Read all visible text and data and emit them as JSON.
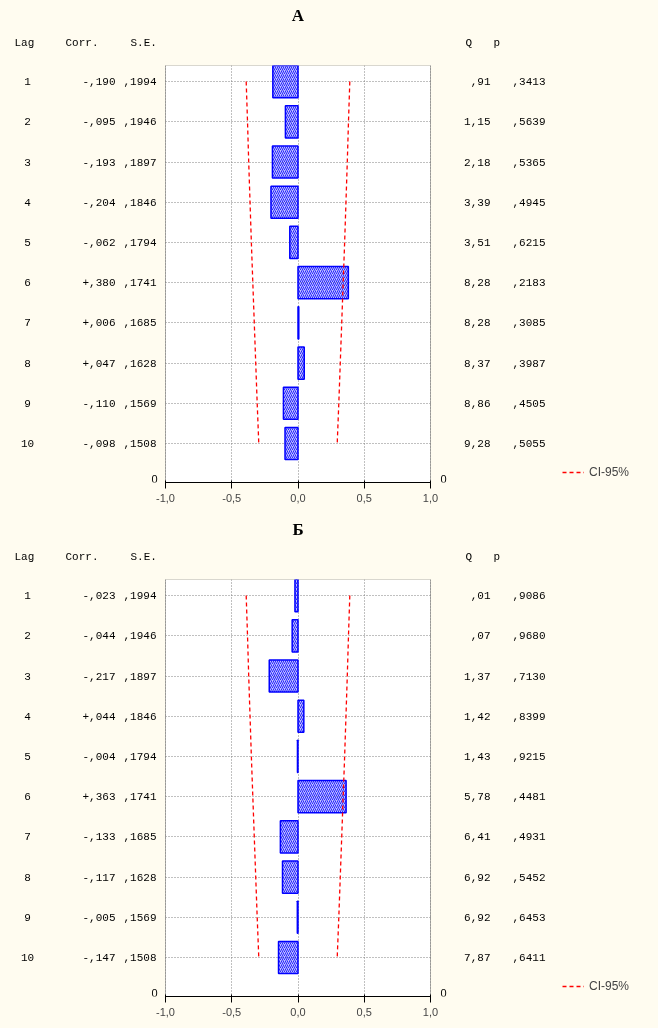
{
  "chart_data": [
    {
      "type": "bar",
      "orientation": "horizontal",
      "title": "А",
      "categories": [
        "1",
        "2",
        "3",
        "4",
        "5",
        "6",
        "7",
        "8",
        "9",
        "10"
      ],
      "series": [
        {
          "type": "bar",
          "color": "#0000ff",
          "values": [
            -0.19,
            -0.095,
            -0.193,
            -0.204,
            -0.062,
            0.38,
            0.006,
            0.047,
            -0.11,
            -0.098
          ]
        },
        {
          "type": "line",
          "name": "CI-95%",
          "color": "#ff0000",
          "line_style": "dashed",
          "values": [
            0.391,
            0.381,
            0.372,
            0.362,
            0.352,
            0.341,
            0.33,
            0.319,
            0.308,
            0.296
          ]
        },
        {
          "type": "line",
          "color": "#ff0000",
          "line_style": "dashed",
          "values": [
            -0.391,
            -0.381,
            -0.372,
            -0.362,
            -0.352,
            -0.341,
            -0.33,
            -0.319,
            -0.308,
            -0.296
          ]
        }
      ],
      "xlim": [
        -1,
        1
      ],
      "xticks": [
        {
          "value": -1,
          "label": "-1,0"
        },
        {
          "value": -0.5,
          "label": "-0,5"
        },
        {
          "value": 0,
          "label": "0,0"
        },
        {
          "value": 0.5,
          "label": "0,5"
        },
        {
          "value": 1,
          "label": "1,0"
        }
      ],
      "grid": true,
      "legend": "bottom right",
      "tick_labels": "x",
      "annotations": [
        "Lag",
        "Corr.",
        "S.E.",
        "Q",
        "p",
        "0",
        "0",
        "-,190",
        ",1994",
        ",91",
        ",3413",
        "-,095",
        ",1946",
        "1,15",
        ",5639",
        "-,193",
        ",1897",
        "2,18",
        ",5365",
        "-,204",
        ",1846",
        "3,39",
        ",4945",
        "-,062",
        ",1794",
        "3,51",
        ",6215",
        "+,380",
        ",1741",
        "8,28",
        ",2183",
        "+,006",
        ",1685",
        "8,28",
        ",3085",
        "+,047",
        ",1628",
        "8,37",
        ",3987",
        "-,110",
        ",1569",
        "8,86",
        ",4505",
        "-,098",
        ",1508",
        "9,28",
        ",5055"
      ]
    },
    {
      "type": "bar",
      "orientation": "horizontal",
      "title": "Б",
      "categories": [
        "1",
        "2",
        "3",
        "4",
        "5",
        "6",
        "7",
        "8",
        "9",
        "10"
      ],
      "series": [
        {
          "type": "bar",
          "color": "#0000ff",
          "values": [
            -0.023,
            -0.044,
            -0.217,
            0.044,
            -0.004,
            0.363,
            -0.133,
            -0.117,
            -0.005,
            -0.147
          ]
        },
        {
          "type": "line",
          "name": "CI-95%",
          "color": "#ff0000",
          "line_style": "dashed",
          "values": [
            0.391,
            0.381,
            0.372,
            0.362,
            0.352,
            0.341,
            0.33,
            0.319,
            0.308,
            0.296
          ]
        },
        {
          "type": "line",
          "color": "#ff0000",
          "line_style": "dashed",
          "values": [
            -0.391,
            -0.381,
            -0.372,
            -0.362,
            -0.352,
            -0.341,
            -0.33,
            -0.319,
            -0.308,
            -0.296
          ]
        }
      ],
      "xlim": [
        -1,
        1
      ],
      "xticks": [
        {
          "value": -1,
          "label": "-1,0"
        },
        {
          "value": -0.5,
          "label": "-0,5"
        },
        {
          "value": 0,
          "label": "0,0"
        },
        {
          "value": 0.5,
          "label": "0,5"
        },
        {
          "value": 1,
          "label": "1,0"
        }
      ],
      "grid": true,
      "legend": "bottom right",
      "tick_labels": "x",
      "annotations": [
        "Lag",
        "Corr.",
        "S.E.",
        "Q",
        "p",
        "0",
        "0",
        "-,023",
        ",1994",
        ",01",
        ",9086",
        "-,044",
        ",1946",
        ",07",
        ",9680",
        "-,217",
        ",1897",
        "1,37",
        ",7130",
        "+,044",
        ",1846",
        "1,42",
        ",8399",
        "-,004",
        ",1794",
        "1,43",
        ",9215",
        "+,363",
        ",1741",
        "5,78",
        ",4481",
        "-,133",
        ",1685",
        "6,41",
        ",4931",
        "-,117",
        ",1628",
        "6,92",
        ",5452",
        "-,005",
        ",1569",
        "6,92",
        ",6453",
        "-,147",
        ",1508",
        "7,87",
        ",6411"
      ]
    }
  ]
}
